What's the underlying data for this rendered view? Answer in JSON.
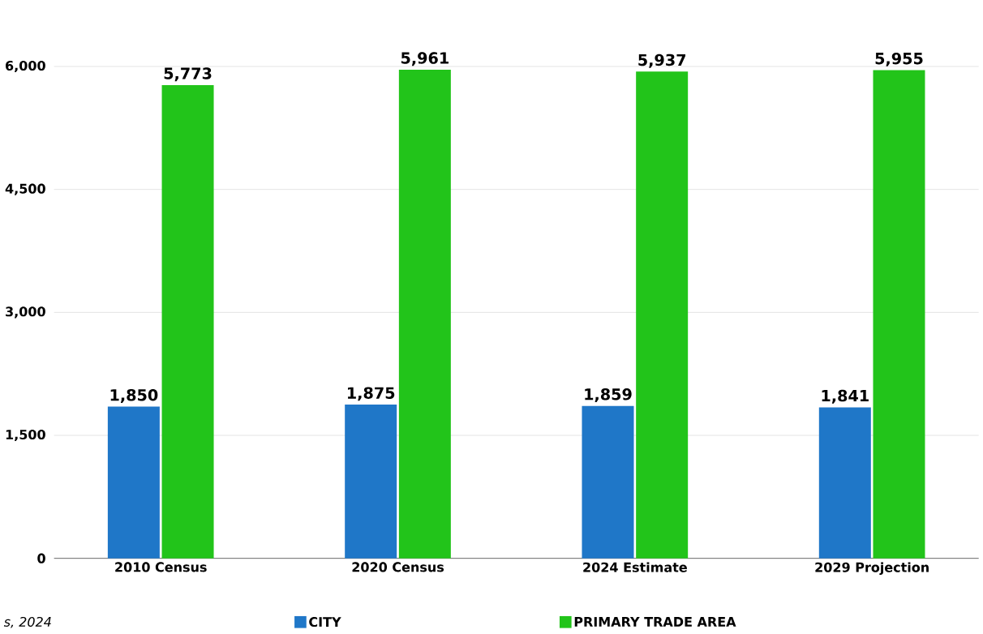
{
  "chart_data": {
    "type": "bar",
    "categories": [
      "2010 Census",
      "2020 Census",
      "2024 Estimate",
      "2029 Projection"
    ],
    "series": [
      {
        "name": "CITY",
        "color": "#1f77c8",
        "values": [
          1850,
          1875,
          1859,
          1841
        ],
        "value_labels": [
          "1,850",
          "1,875",
          "1,859",
          "1,841"
        ]
      },
      {
        "name": "PRIMARY TRADE AREA",
        "color": "#22c41a",
        "values": [
          5773,
          5961,
          5937,
          5955
        ],
        "value_labels": [
          "5,773",
          "5,961",
          "5,937",
          "5,955"
        ]
      }
    ],
    "ylim": [
      0,
      6000
    ],
    "yticks": [
      {
        "value": 0,
        "label": "0"
      },
      {
        "value": 1500,
        "label": "1,500"
      },
      {
        "value": 3000,
        "label": "3,000"
      },
      {
        "value": 4500,
        "label": "4,500"
      },
      {
        "value": 6000,
        "label": "6,000"
      }
    ],
    "grid": "y",
    "legend": "bottom",
    "annotations": [
      "s, 2024"
    ]
  }
}
